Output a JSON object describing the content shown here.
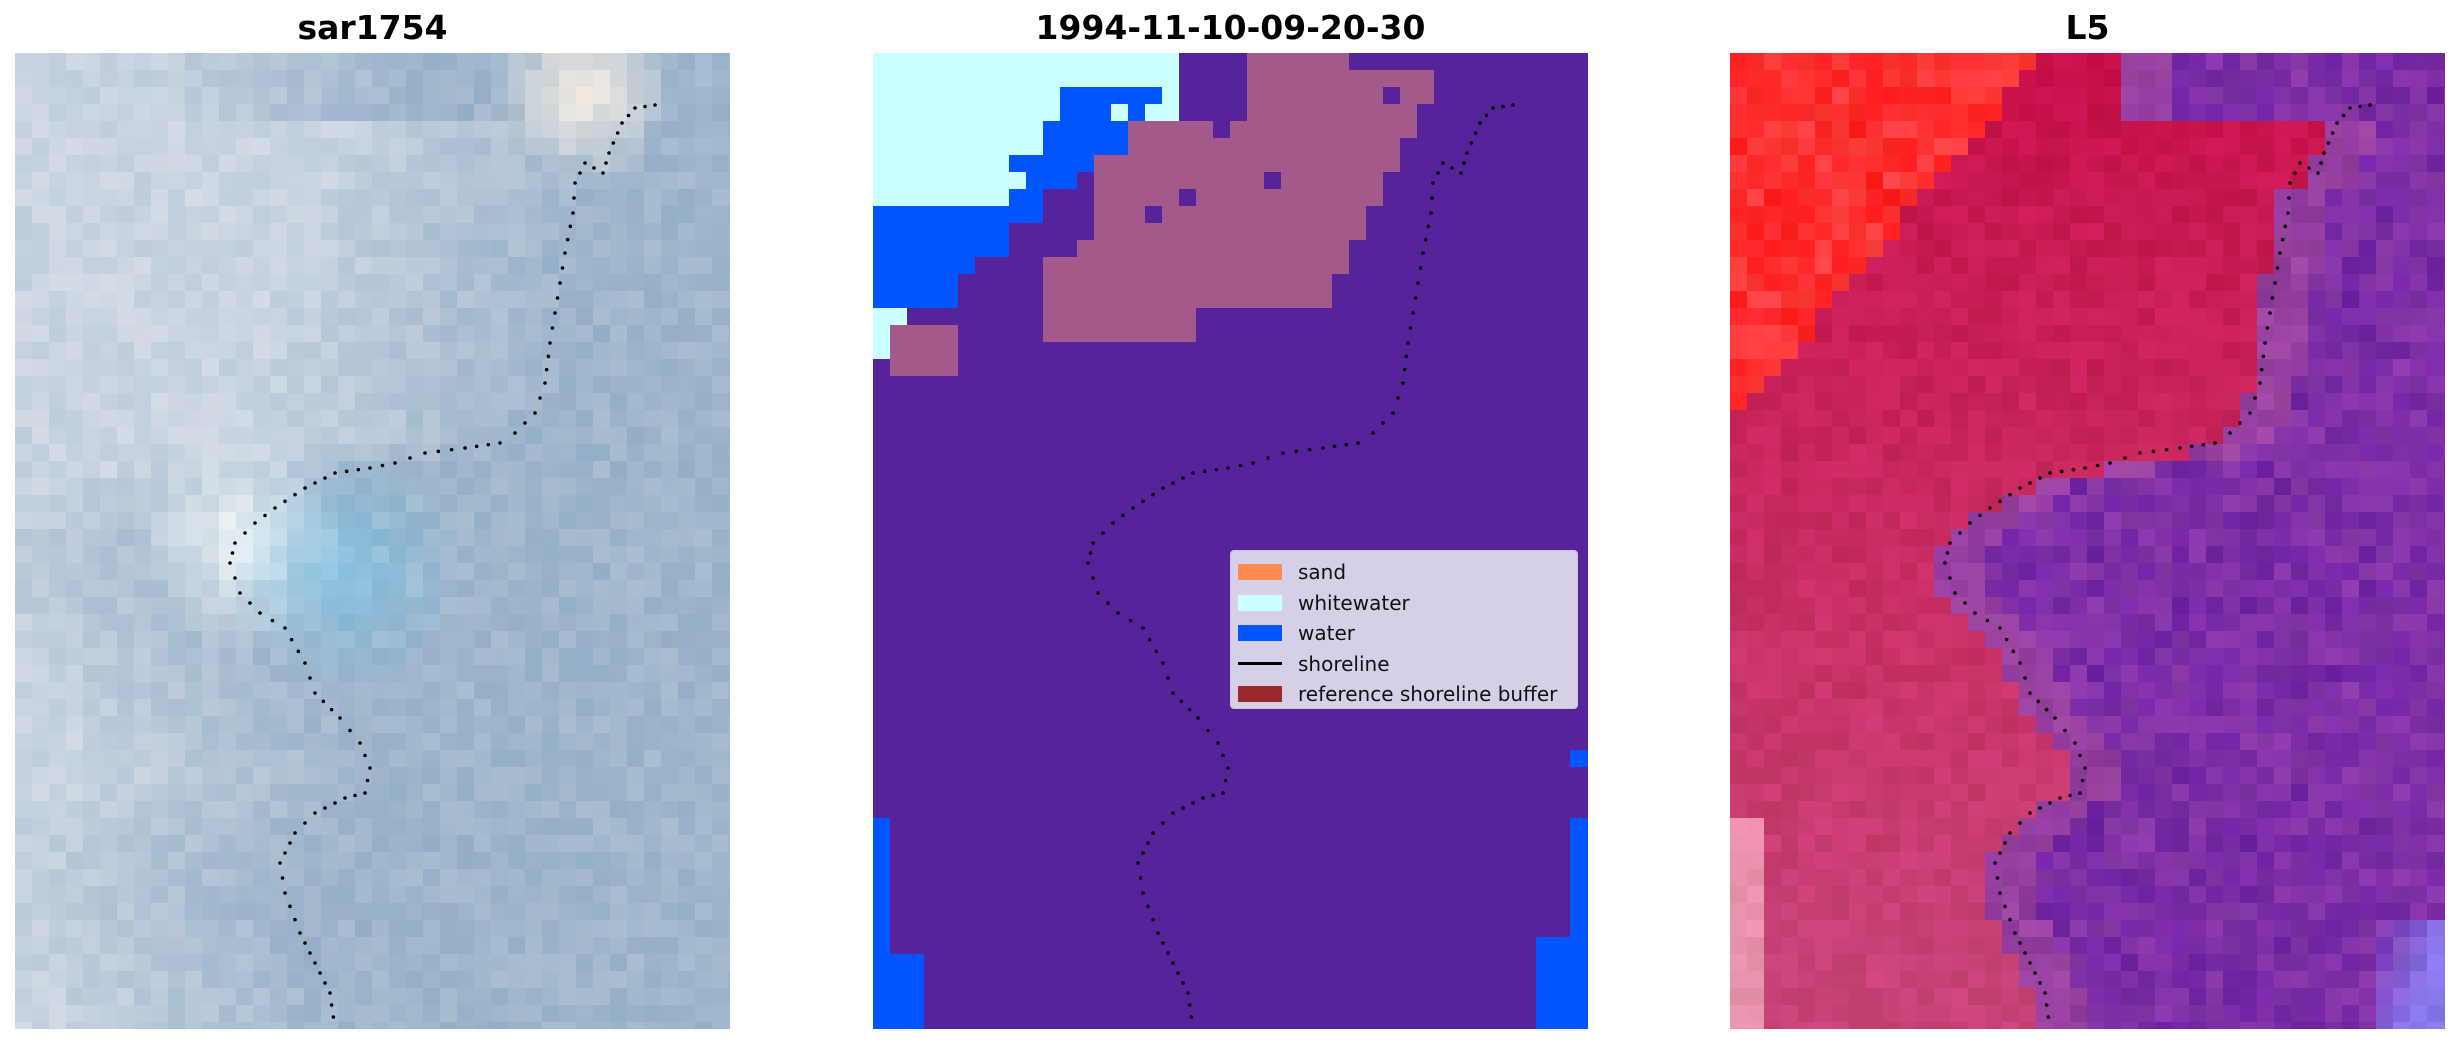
{
  "panels": [
    {
      "title": "sar1754",
      "kind": "rgb"
    },
    {
      "title": "1994-11-10-09-20-30",
      "kind": "classified"
    },
    {
      "title": "L5",
      "kind": "index"
    }
  ],
  "colors": {
    "sand": "#ff8a50",
    "whitewater": "#ccffff",
    "water": "#0055ff",
    "shoreline": "#000000",
    "reference_buffer": "#9a2a2a",
    "classified_background": "#55239a",
    "classified_buffer_overlay": "#a35a8a",
    "index_low": "#ff1a1a",
    "index_mid": "#c8104a",
    "index_high": "#8a3aa8",
    "index_deep": "#5a10a0",
    "rgb_base": "#9fb6cc",
    "rgb_bright": "#f4f8f8",
    "rgb_cyan": "#7ec6e8"
  },
  "legend": {
    "items": [
      {
        "label": "sand",
        "type": "patch",
        "color": "#ff8a50"
      },
      {
        "label": "whitewater",
        "type": "patch",
        "color": "#ccffff"
      },
      {
        "label": "water",
        "type": "patch",
        "color": "#0055ff"
      },
      {
        "label": "shoreline",
        "type": "line",
        "color": "#000000"
      },
      {
        "label": "reference shoreline buffer",
        "type": "patch",
        "color": "#9a2a2a"
      }
    ]
  }
}
